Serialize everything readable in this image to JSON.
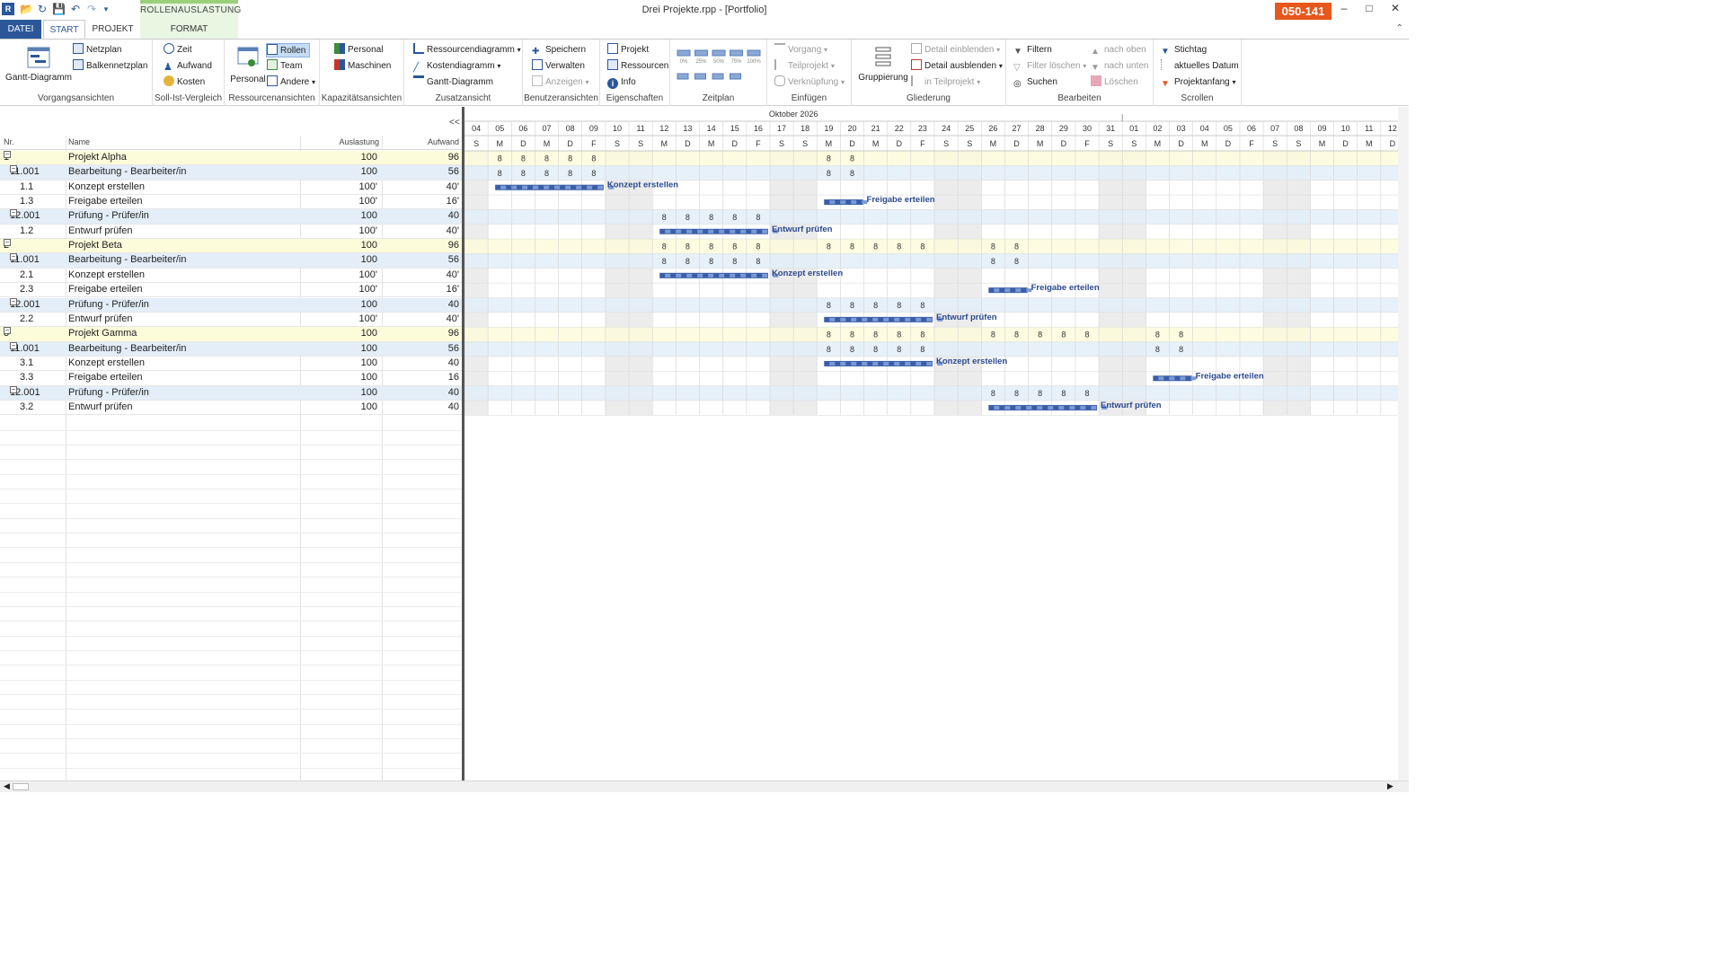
{
  "window": {
    "title": "Drei Projekte.rpp - [Portfolio]",
    "badge": "050-141",
    "context_tab_group": "ROLLENAUSLASTUNG"
  },
  "tabs": [
    "DATEI",
    "START",
    "PROJEKT",
    "FORMAT"
  ],
  "ribbon": {
    "vorgangsansichten": {
      "label": "Vorgangsansichten",
      "gantt": "Gantt-Diagramm",
      "netzplan": "Netzplan",
      "balkennetzplan": "Balkennetzplan"
    },
    "sollist": {
      "label": "Soll-Ist-Vergleich",
      "zeit": "Zeit",
      "aufwand": "Aufwand",
      "kosten": "Kosten"
    },
    "ressourcen": {
      "label": "Ressourcenansichten",
      "personal": "Personal",
      "rollen": "Rollen",
      "team": "Team",
      "andere": "Andere"
    },
    "kapazitaet": {
      "label": "Kapazitätsansichten",
      "personal": "Personal",
      "maschinen": "Maschinen"
    },
    "zusatz": {
      "label": "Zusatzansicht",
      "ressourcendiagramm": "Ressourcendiagramm",
      "kostendiagramm": "Kostendiagramm",
      "gantt": "Gantt-Diagramm"
    },
    "benutzer": {
      "label": "Benutzeransichten",
      "speichern": "Speichern",
      "verwalten": "Verwalten",
      "anzeigen": "Anzeigen"
    },
    "eigenschaften": {
      "label": "Eigenschaften",
      "projekt": "Projekt",
      "ressourcen": "Ressourcen",
      "info": "Info"
    },
    "zeitplan": {
      "label": "Zeitplan",
      "percents": [
        "0%",
        "25%",
        "50%",
        "75%",
        "100%"
      ]
    },
    "einfuegen": {
      "label": "Einfügen",
      "vorgang": "Vorgang",
      "teilprojekt": "Teilprojekt",
      "verknuepfung": "Verknüpfung"
    },
    "gliederung": {
      "label": "Gliederung",
      "gruppierung": "Gruppierung",
      "detail_ein": "Detail einblenden",
      "detail_aus": "Detail ausblenden",
      "in_teilprojekt": "in Teilprojekt"
    },
    "bearbeiten": {
      "label": "Bearbeiten",
      "filtern": "Filtern",
      "filter_loeschen": "Filter löschen",
      "suchen": "Suchen",
      "nach_oben": "nach oben",
      "nach_unten": "nach unten",
      "loeschen": "Löschen"
    },
    "scrollen": {
      "label": "Scrollen",
      "stichtag": "Stichtag",
      "aktuelles_datum": "aktuelles Datum",
      "projektanfang": "Projektanfang"
    }
  },
  "table": {
    "collapse_label": "<<",
    "headers": {
      "nr": "Nr.",
      "name": "Name",
      "auslastung": "Auslastung",
      "aufwand": "Aufwand"
    },
    "rows": [
      {
        "nr": "1",
        "name": "Projekt Alpha",
        "aus": "100",
        "auf": "96",
        "kind": "proj",
        "toggle": true
      },
      {
        "nr": "11.001",
        "name": "Bearbeitung - Bearbeiter/in",
        "aus": "100",
        "auf": "56",
        "kind": "role",
        "toggle": true
      },
      {
        "nr": "1.1",
        "name": "Konzept erstellen",
        "aus": "100'",
        "auf": "40'",
        "kind": "task"
      },
      {
        "nr": "1.3",
        "name": "Freigabe erteilen",
        "aus": "100'",
        "auf": "16'",
        "kind": "task"
      },
      {
        "nr": "12.001",
        "name": "Prüfung - Prüfer/in",
        "aus": "100",
        "auf": "40",
        "kind": "role",
        "toggle": true
      },
      {
        "nr": "1.2",
        "name": "Entwurf prüfen",
        "aus": "100'",
        "auf": "40'",
        "kind": "task"
      },
      {
        "nr": "2",
        "name": "Projekt Beta",
        "aus": "100",
        "auf": "96",
        "kind": "proj",
        "toggle": true
      },
      {
        "nr": "11.001",
        "name": "Bearbeitung - Bearbeiter/in",
        "aus": "100",
        "auf": "56",
        "kind": "role",
        "toggle": true
      },
      {
        "nr": "2.1",
        "name": "Konzept erstellen",
        "aus": "100'",
        "auf": "40'",
        "kind": "task"
      },
      {
        "nr": "2.3",
        "name": "Freigabe erteilen",
        "aus": "100'",
        "auf": "16'",
        "kind": "task"
      },
      {
        "nr": "12.001",
        "name": "Prüfung - Prüfer/in",
        "aus": "100",
        "auf": "40",
        "kind": "role",
        "toggle": true
      },
      {
        "nr": "2.2",
        "name": "Entwurf prüfen",
        "aus": "100'",
        "auf": "40'",
        "kind": "task"
      },
      {
        "nr": "3",
        "name": "Projekt Gamma",
        "aus": "100",
        "auf": "96",
        "kind": "proj",
        "toggle": true
      },
      {
        "nr": "11.001",
        "name": "Bearbeitung - Bearbeiter/in",
        "aus": "100",
        "auf": "56",
        "kind": "role",
        "toggle": true
      },
      {
        "nr": "3.1",
        "name": "Konzept erstellen",
        "aus": "100",
        "auf": "40",
        "kind": "task"
      },
      {
        "nr": "3.3",
        "name": "Freigabe erteilen",
        "aus": "100",
        "auf": "16",
        "kind": "task"
      },
      {
        "nr": "12.001",
        "name": "Prüfung - Prüfer/in",
        "aus": "100",
        "auf": "40",
        "kind": "role",
        "toggle": true
      },
      {
        "nr": "3.2",
        "name": "Entwurf prüfen",
        "aus": "100",
        "auf": "40",
        "kind": "task"
      }
    ]
  },
  "timeline": {
    "month_label": "Oktober 2026",
    "days": [
      "04",
      "05",
      "06",
      "07",
      "08",
      "09",
      "10",
      "11",
      "12",
      "13",
      "14",
      "15",
      "16",
      "17",
      "18",
      "19",
      "20",
      "21",
      "22",
      "23",
      "24",
      "25",
      "26",
      "27",
      "28",
      "29",
      "30",
      "31",
      "01",
      "02",
      "03",
      "04",
      "05",
      "06",
      "07",
      "08",
      "09",
      "10",
      "11",
      "12"
    ],
    "weekdays": [
      "S",
      "M",
      "D",
      "M",
      "D",
      "F",
      "S",
      "S",
      "M",
      "D",
      "M",
      "D",
      "F",
      "S",
      "S",
      "M",
      "D",
      "M",
      "D",
      "F",
      "S",
      "S",
      "M",
      "D",
      "M",
      "D",
      "F",
      "S",
      "S",
      "M",
      "D",
      "M",
      "D",
      "F",
      "S",
      "S",
      "M",
      "D",
      "M",
      "D"
    ],
    "weekend_indices": [
      0,
      6,
      7,
      13,
      14,
      20,
      21,
      27,
      28,
      34,
      35
    ],
    "hours": [
      {
        "row": 0,
        "start": 1,
        "values": [
          "8",
          "8",
          "8",
          "8",
          "8"
        ]
      },
      {
        "row": 0,
        "start": 15,
        "values": [
          "8",
          "8"
        ]
      },
      {
        "row": 1,
        "start": 1,
        "values": [
          "8",
          "8",
          "8",
          "8",
          "8"
        ]
      },
      {
        "row": 1,
        "start": 15,
        "values": [
          "8",
          "8"
        ]
      },
      {
        "row": 4,
        "start": 8,
        "values": [
          "8",
          "8",
          "8",
          "8",
          "8"
        ]
      },
      {
        "row": 6,
        "start": 8,
        "values": [
          "8",
          "8",
          "8",
          "8",
          "8"
        ]
      },
      {
        "row": 6,
        "start": 15,
        "values": [
          "8",
          "8",
          "8",
          "8",
          "8"
        ]
      },
      {
        "row": 6,
        "start": 22,
        "values": [
          "8",
          "8"
        ]
      },
      {
        "row": 7,
        "start": 8,
        "values": [
          "8",
          "8",
          "8",
          "8",
          "8"
        ]
      },
      {
        "row": 7,
        "start": 22,
        "values": [
          "8",
          "8"
        ]
      },
      {
        "row": 10,
        "start": 15,
        "values": [
          "8",
          "8",
          "8",
          "8",
          "8"
        ]
      },
      {
        "row": 12,
        "start": 15,
        "values": [
          "8",
          "8",
          "8",
          "8",
          "8"
        ]
      },
      {
        "row": 12,
        "start": 22,
        "values": [
          "8",
          "8",
          "8",
          "8",
          "8"
        ]
      },
      {
        "row": 12,
        "start": 29,
        "values": [
          "8",
          "8"
        ]
      },
      {
        "row": 13,
        "start": 15,
        "values": [
          "8",
          "8",
          "8",
          "8",
          "8"
        ]
      },
      {
        "row": 13,
        "start": 29,
        "values": [
          "8",
          "8"
        ]
      },
      {
        "row": 16,
        "start": 22,
        "values": [
          "8",
          "8",
          "8",
          "8",
          "8"
        ]
      }
    ],
    "bars": [
      {
        "row": 2,
        "start": 1,
        "days": 5,
        "label": "Konzept erstellen"
      },
      {
        "row": 3,
        "start": 15,
        "days": 2,
        "label": "Freigabe erteilen"
      },
      {
        "row": 5,
        "start": 8,
        "days": 5,
        "label": "Entwurf prüfen"
      },
      {
        "row": 8,
        "start": 8,
        "days": 5,
        "label": "Konzept erstellen"
      },
      {
        "row": 9,
        "start": 22,
        "days": 2,
        "label": "Freigabe erteilen"
      },
      {
        "row": 11,
        "start": 15,
        "days": 5,
        "label": "Entwurf prüfen"
      },
      {
        "row": 14,
        "start": 15,
        "days": 5,
        "label": "Konzept erstellen"
      },
      {
        "row": 15,
        "start": 29,
        "days": 2,
        "label": "Freigabe erteilen"
      },
      {
        "row": 17,
        "start": 22,
        "days": 5,
        "label": "Entwurf prüfen"
      }
    ]
  },
  "colors": {
    "accent": "#2b579a",
    "badge": "#e8571c",
    "project_row": "#fdfcda",
    "role_row": "#e3eef9",
    "bar": "#3a5ea8",
    "bar_light": "#7c9ad4",
    "weekend": "#ececec"
  }
}
